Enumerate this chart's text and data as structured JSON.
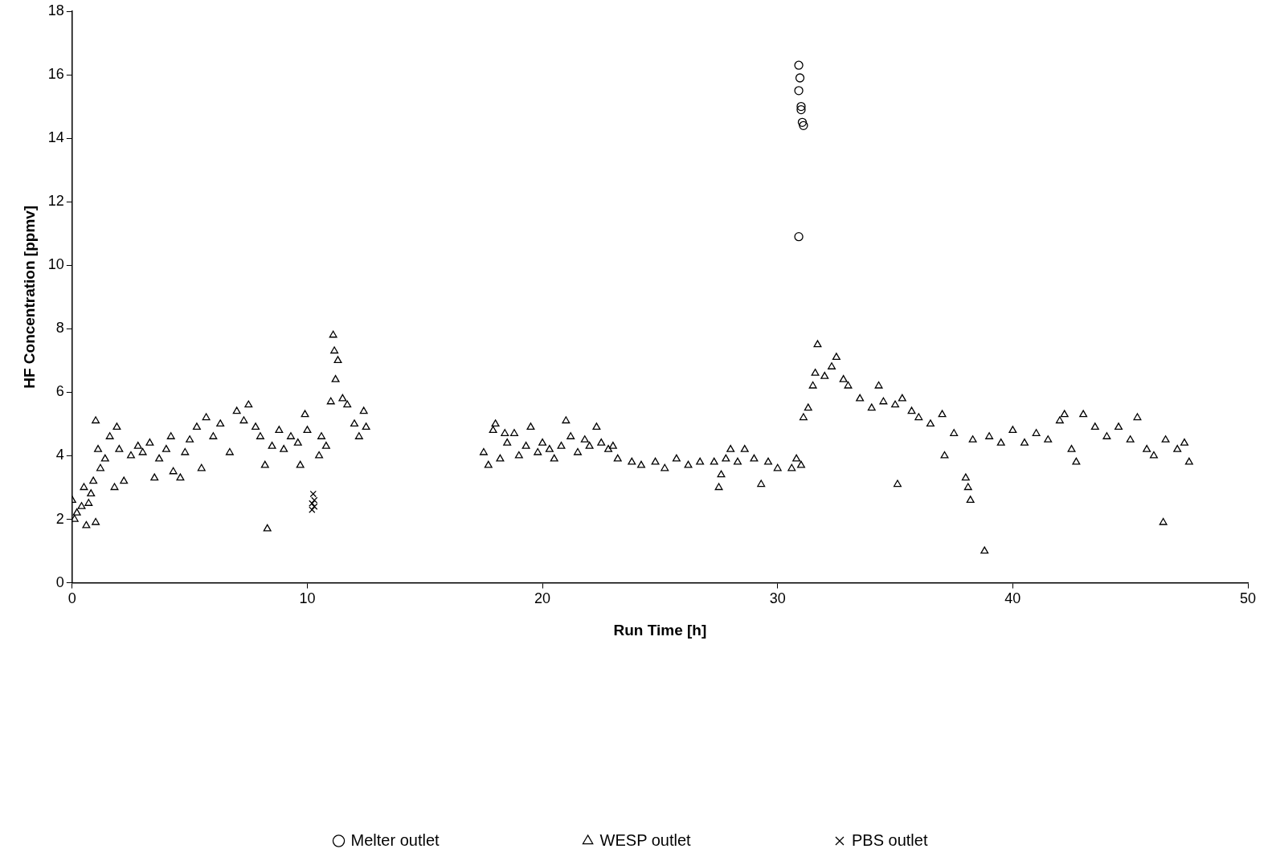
{
  "chart_data": {
    "type": "scatter",
    "xlabel": "Run Time [h]",
    "ylabel": "HF Concentration [ppmv]",
    "xlim": [
      0,
      50
    ],
    "xticks": [
      0,
      10,
      20,
      30,
      40,
      50
    ],
    "ylim": [
      0,
      18
    ],
    "yticks": [
      0,
      2,
      4,
      6,
      8,
      10,
      12,
      14,
      16,
      18
    ],
    "grid": false,
    "legend": "bottom",
    "series": [
      {
        "name": "Melter outlet",
        "color": "#000000",
        "marker": "circle",
        "x": [
          30.9,
          30.95,
          30.9,
          31.0,
          31.0,
          31.05,
          31.1,
          30.9
        ],
        "values": [
          16.3,
          15.9,
          15.5,
          15.0,
          14.9,
          14.5,
          14.4,
          10.9
        ]
      },
      {
        "name": "WESP outlet",
        "color": "#000000",
        "marker": "triangle",
        "x": [
          0,
          0.1,
          0.2,
          0.4,
          0.5,
          0.6,
          0.7,
          0.8,
          0.9,
          1.0,
          1.0,
          1.1,
          1.2,
          1.4,
          1.6,
          1.8,
          1.9,
          2.0,
          2.2,
          2.5,
          2.8,
          3.0,
          3.3,
          3.5,
          3.7,
          4.0,
          4.2,
          4.3,
          4.6,
          4.8,
          5.0,
          5.3,
          5.5,
          5.7,
          6.0,
          6.3,
          6.7,
          7.0,
          7.3,
          7.5,
          7.8,
          8.0,
          8.2,
          8.3,
          8.5,
          8.8,
          9.0,
          9.3,
          9.6,
          9.7,
          9.9,
          10.0,
          10.5,
          10.6,
          10.8,
          11.0,
          11.1,
          11.15,
          11.2,
          11.3,
          11.5,
          11.7,
          12.0,
          12.2,
          12.4,
          12.5,
          17.5,
          17.7,
          17.9,
          18.0,
          18.2,
          18.4,
          18.5,
          18.8,
          19.0,
          19.3,
          19.5,
          19.8,
          20.0,
          20.3,
          20.5,
          20.8,
          21.0,
          21.2,
          21.5,
          21.8,
          22.0,
          22.3,
          22.5,
          22.8,
          23.0,
          23.2,
          23.8,
          24.2,
          24.8,
          25.2,
          25.7,
          26.2,
          26.7,
          27.3,
          27.5,
          27.6,
          27.8,
          28.0,
          28.3,
          28.6,
          29.0,
          29.3,
          29.6,
          30.0,
          30.6,
          30.8,
          31.0,
          31.1,
          31.3,
          31.5,
          31.6,
          31.7,
          32.0,
          32.3,
          32.5,
          32.8,
          33.0,
          33.5,
          34.0,
          34.3,
          34.5,
          35.0,
          35.1,
          35.3,
          35.7,
          36.0,
          36.5,
          37.0,
          37.1,
          37.5,
          38.0,
          38.1,
          38.2,
          38.3,
          38.8,
          39.0,
          39.5,
          40.0,
          40.5,
          41.0,
          41.5,
          42.0,
          42.2,
          42.5,
          42.7,
          43.0,
          43.5,
          44.0,
          44.5,
          45.0,
          45.3,
          45.7,
          46.0,
          46.4,
          46.5,
          47.0,
          47.3,
          47.5
        ],
        "values": [
          2.6,
          2.0,
          2.2,
          2.4,
          3.0,
          1.8,
          2.5,
          2.8,
          3.2,
          1.9,
          5.1,
          4.2,
          3.6,
          3.9,
          4.6,
          3.0,
          4.9,
          4.2,
          3.2,
          4.0,
          4.3,
          4.1,
          4.4,
          3.3,
          3.9,
          4.2,
          4.6,
          3.5,
          3.3,
          4.1,
          4.5,
          4.9,
          3.6,
          5.2,
          4.6,
          5.0,
          4.1,
          5.4,
          5.1,
          5.6,
          4.9,
          4.6,
          3.7,
          1.7,
          4.3,
          4.8,
          4.2,
          4.6,
          4.4,
          3.7,
          5.3,
          4.8,
          4.0,
          4.6,
          4.3,
          5.7,
          7.8,
          7.3,
          6.4,
          7.0,
          5.8,
          5.6,
          5.0,
          4.6,
          5.4,
          4.9,
          4.1,
          3.7,
          4.8,
          5.0,
          3.9,
          4.7,
          4.4,
          4.7,
          4.0,
          4.3,
          4.9,
          4.1,
          4.4,
          4.2,
          3.9,
          4.3,
          5.1,
          4.6,
          4.1,
          4.5,
          4.3,
          4.9,
          4.4,
          4.2,
          4.3,
          3.9,
          3.8,
          3.7,
          3.8,
          3.6,
          3.9,
          3.7,
          3.8,
          3.8,
          3.0,
          3.4,
          3.9,
          4.2,
          3.8,
          4.2,
          3.9,
          3.1,
          3.8,
          3.6,
          3.6,
          3.9,
          3.7,
          5.2,
          5.5,
          6.2,
          6.6,
          7.5,
          6.5,
          6.8,
          7.1,
          6.4,
          6.2,
          5.8,
          5.5,
          6.2,
          5.7,
          5.6,
          3.1,
          5.8,
          5.4,
          5.2,
          5.0,
          5.3,
          4.0,
          4.7,
          3.3,
          3.0,
          2.6,
          4.5,
          1.0,
          4.6,
          4.4,
          4.8,
          4.4,
          4.7,
          4.5,
          5.1,
          5.3,
          4.2,
          3.8,
          5.3,
          4.9,
          4.6,
          4.9,
          4.5,
          5.2,
          4.2,
          4.0,
          1.9,
          4.5,
          4.2,
          4.4,
          3.8
        ]
      },
      {
        "name": "PBS outlet",
        "color": "#000000",
        "marker": "cross",
        "x": [
          10.25,
          10.3,
          10.2,
          10.3,
          10.2
        ],
        "values": [
          2.8,
          2.6,
          2.5,
          2.4,
          2.3
        ]
      }
    ]
  }
}
